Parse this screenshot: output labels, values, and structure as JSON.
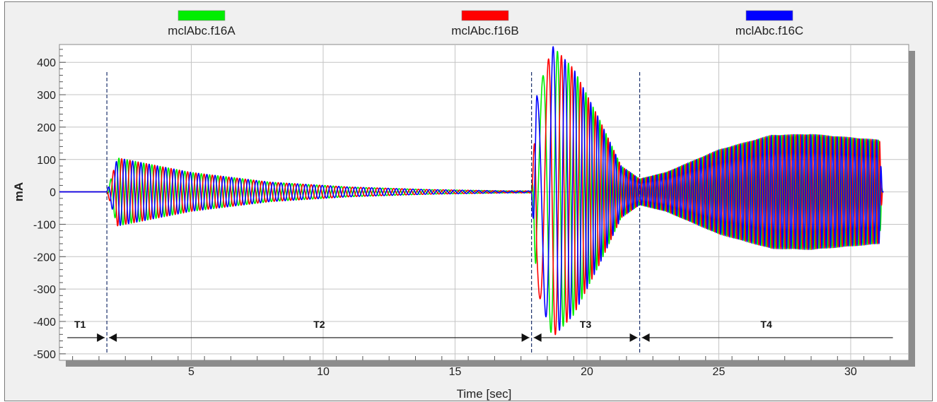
{
  "chart_data": {
    "type": "line",
    "xlabel": "Time [sec]",
    "ylabel": "mA",
    "xlim": [
      0,
      32.2
    ],
    "ylim": [
      -520,
      455
    ],
    "x_ticks": [
      5,
      10,
      15,
      20,
      25,
      30
    ],
    "y_ticks": [
      400,
      300,
      200,
      100,
      0,
      -100,
      -200,
      -300,
      -400,
      -500
    ],
    "grid": true,
    "legend_position": "top",
    "series": [
      {
        "name": "mclAbc.f16A",
        "color": "#00ee00",
        "phase_deg": 0
      },
      {
        "name": "mclAbc.f16B",
        "color": "#ff0000",
        "phase_deg": -120
      },
      {
        "name": "mclAbc.f16C",
        "color": "#0000ff",
        "phase_deg": 120
      }
    ],
    "envelope_mA": {
      "x": [
        0,
        1.8,
        2.2,
        5,
        8,
        11,
        14,
        17,
        17.9,
        18.1,
        18.7,
        19.5,
        20.5,
        21.3,
        22.0,
        23,
        25,
        27,
        28.5,
        31.1,
        31.2
      ],
      "amplitude": [
        0,
        0,
        105,
        60,
        30,
        15,
        7,
        3,
        3,
        300,
        450,
        380,
        220,
        80,
        40,
        60,
        130,
        175,
        178,
        160,
        0
      ]
    },
    "segments": [
      {
        "label": "T1",
        "from": 0.3,
        "to": 1.8
      },
      {
        "label": "T2",
        "from": 1.8,
        "to": 17.9
      },
      {
        "label": "T3",
        "from": 17.9,
        "to": 22.0
      },
      {
        "label": "T4",
        "from": 22.0,
        "to": 31.6
      }
    ],
    "boundaries": [
      1.8,
      17.9,
      22.0
    ]
  }
}
